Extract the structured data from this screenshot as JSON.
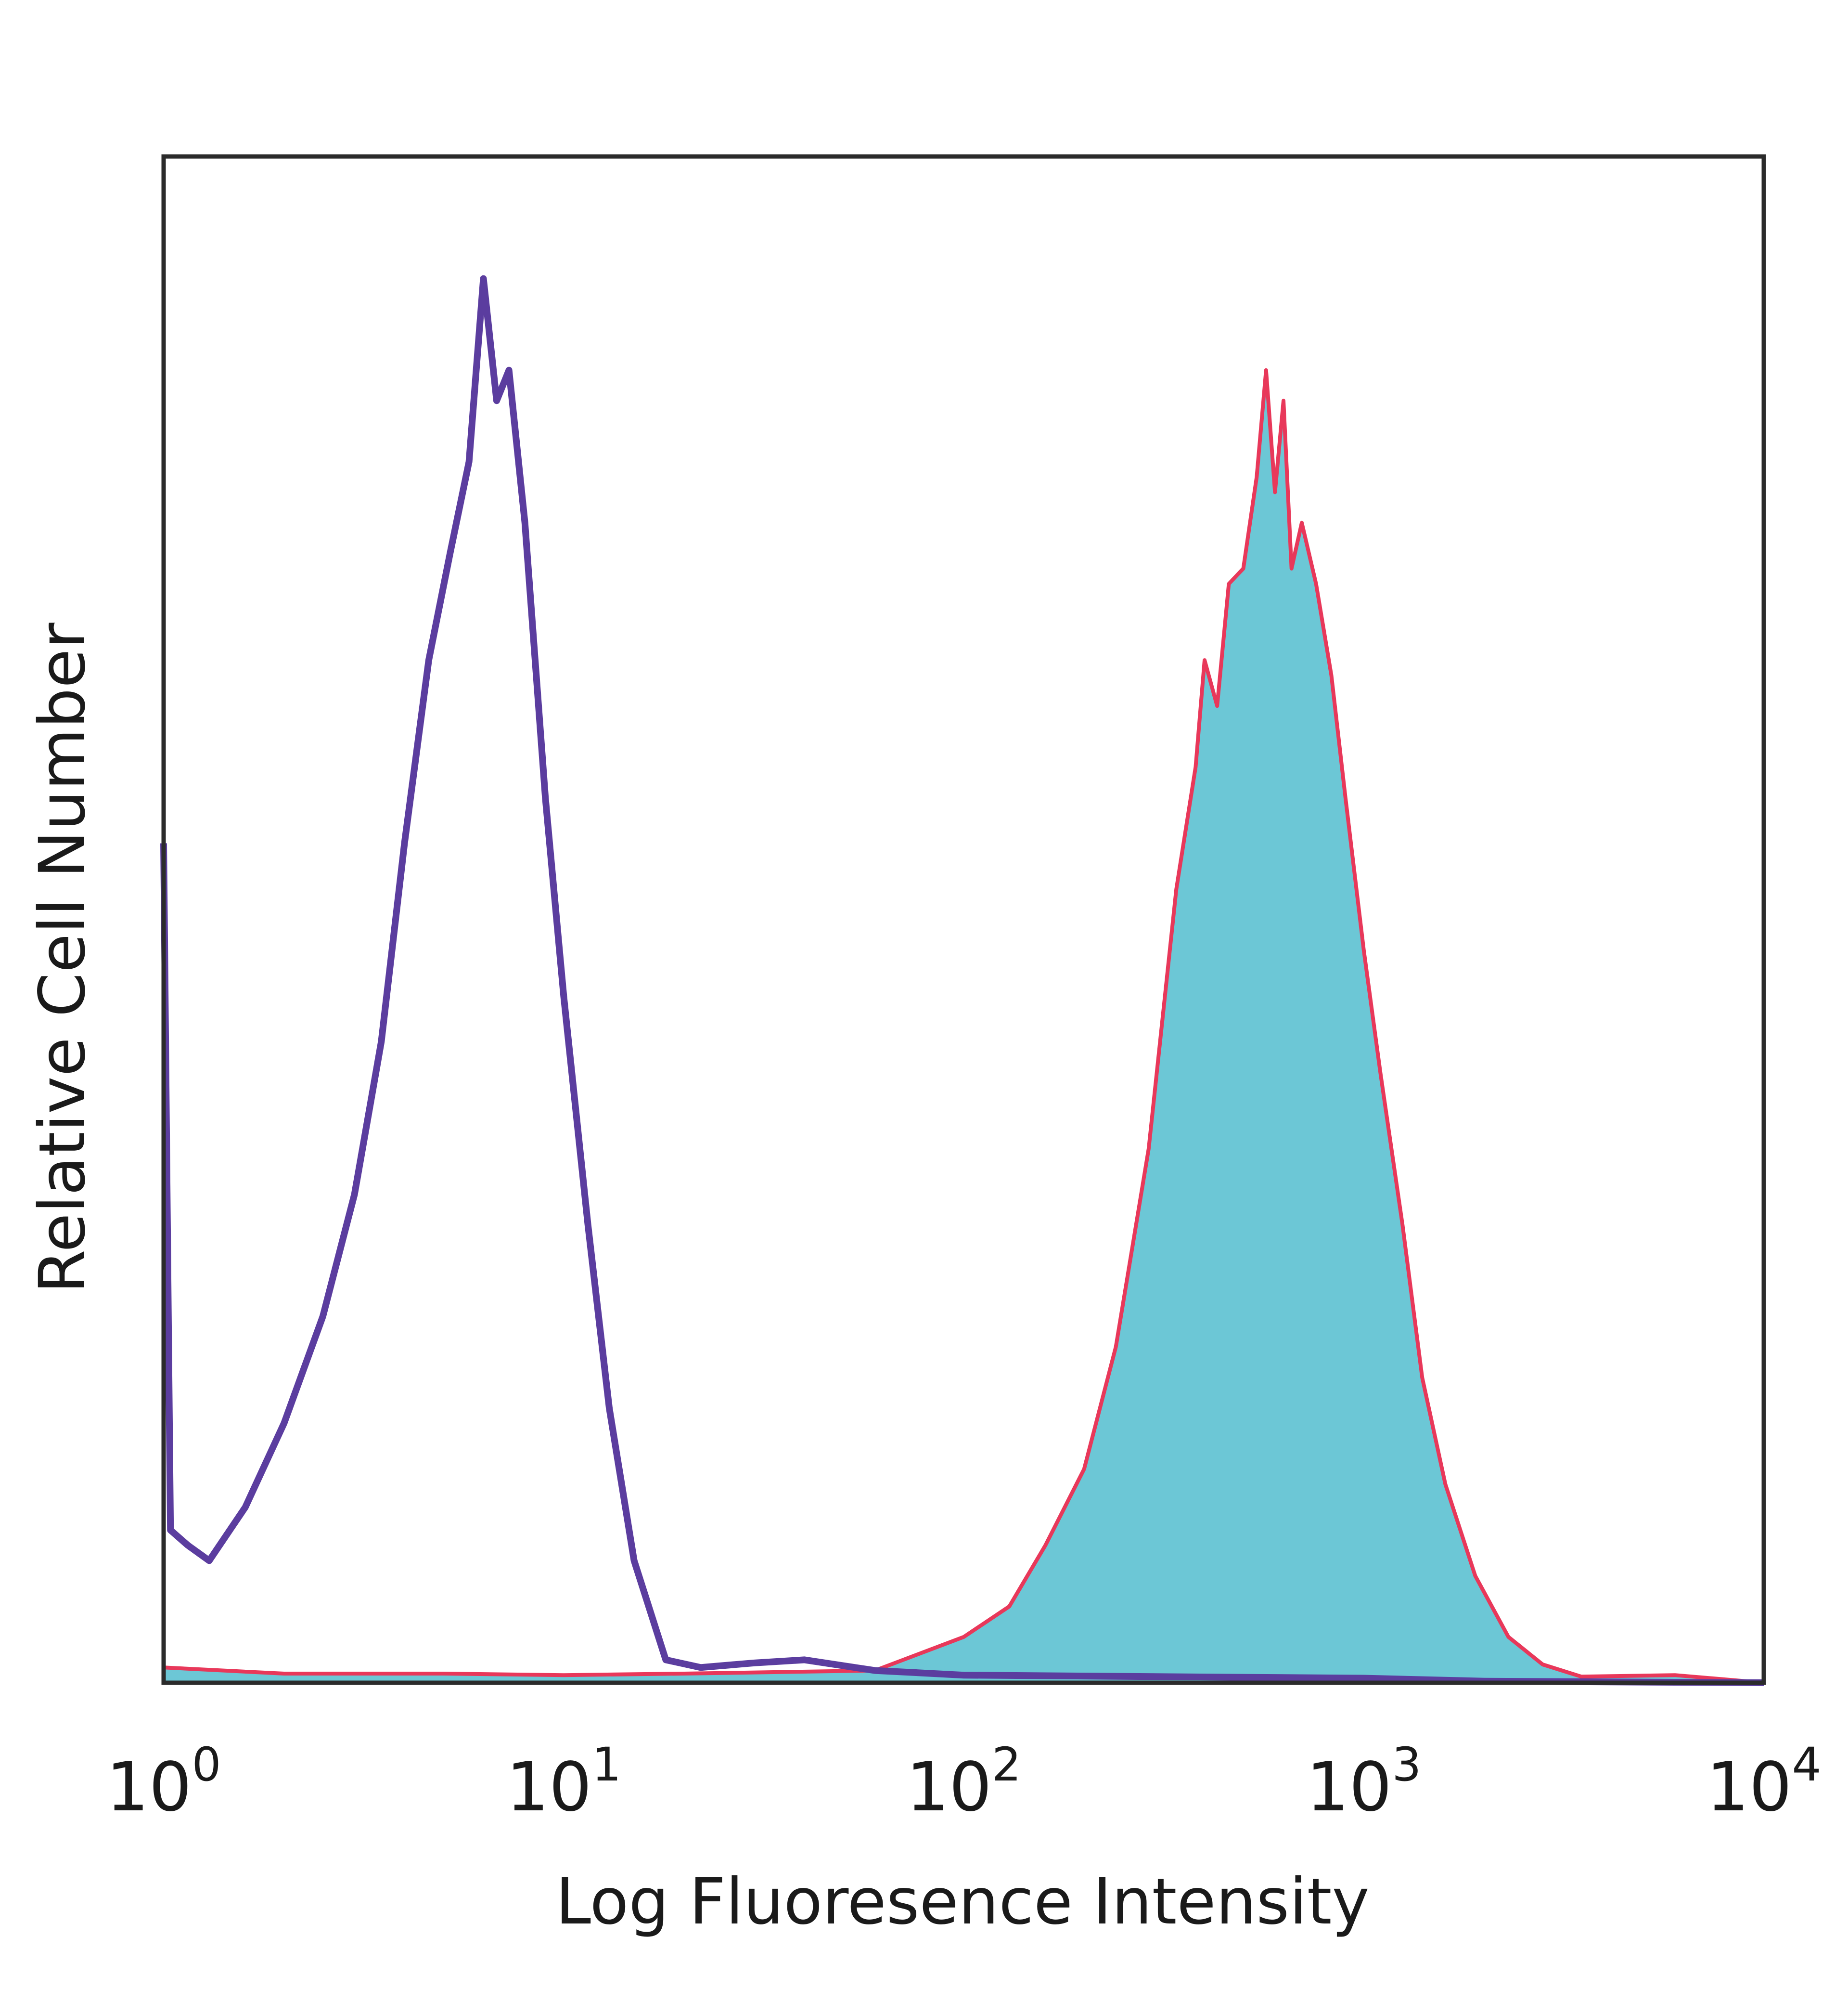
{
  "chart_data": {
    "type": "area",
    "title": "",
    "xlabel": "Log Fluoresence Intensity",
    "ylabel": "Relative Cell Number",
    "x_scale": "log",
    "xlim": [
      1,
      10000
    ],
    "ylim": [
      0,
      100
    ],
    "grid": false,
    "legend": "none",
    "x_ticks": [
      {
        "base": "10",
        "exp": "0",
        "value": 1
      },
      {
        "base": "10",
        "exp": "1",
        "value": 10
      },
      {
        "base": "10",
        "exp": "2",
        "value": 100
      },
      {
        "base": "10",
        "exp": "3",
        "value": 1000
      },
      {
        "base": "10",
        "exp": "4",
        "value": 10000
      }
    ],
    "series": [
      {
        "style": "filled",
        "fill": "#6cc7d6",
        "stroke": "#e8385a",
        "points": [
          [
            1.0,
            1.0
          ],
          [
            2.0,
            0.6
          ],
          [
            5.0,
            0.6
          ],
          [
            10.0,
            0.5
          ],
          [
            20.0,
            0.6
          ],
          [
            60.0,
            0.8
          ],
          [
            100.0,
            3.0
          ],
          [
            130.0,
            5.0
          ],
          [
            160.0,
            9.0
          ],
          [
            200.0,
            14.0
          ],
          [
            240.0,
            22.0
          ],
          [
            290.0,
            35.0
          ],
          [
            340.0,
            52.0
          ],
          [
            380.0,
            60.0
          ],
          [
            400.0,
            67.0
          ],
          [
            430.0,
            64.0
          ],
          [
            460.0,
            72.0
          ],
          [
            500.0,
            73.0
          ],
          [
            540.0,
            79.0
          ],
          [
            570.0,
            86.0
          ],
          [
            600.0,
            78.0
          ],
          [
            630.0,
            84.0
          ],
          [
            660.0,
            73.0
          ],
          [
            700.0,
            76.0
          ],
          [
            760.0,
            72.0
          ],
          [
            830.0,
            66.0
          ],
          [
            900.0,
            58.0
          ],
          [
            1000.0,
            48.0
          ],
          [
            1100.0,
            40.0
          ],
          [
            1250.0,
            30.0
          ],
          [
            1400.0,
            20.0
          ],
          [
            1600.0,
            13.0
          ],
          [
            1900.0,
            7.0
          ],
          [
            2300.0,
            3.0
          ],
          [
            2800.0,
            1.2
          ],
          [
            3500.0,
            0.4
          ],
          [
            6000.0,
            0.5
          ],
          [
            10000.0,
            0.0
          ]
        ]
      },
      {
        "style": "line",
        "stroke": "#5b3d9f",
        "points": [
          [
            1.0,
            55.0
          ],
          [
            1.04,
            10.0
          ],
          [
            1.15,
            9.0
          ],
          [
            1.3,
            8.0
          ],
          [
            1.6,
            11.5
          ],
          [
            2.0,
            17.0
          ],
          [
            2.5,
            24.0
          ],
          [
            3.0,
            32.0
          ],
          [
            3.5,
            42.0
          ],
          [
            4.0,
            55.0
          ],
          [
            4.6,
            67.0
          ],
          [
            5.2,
            74.0
          ],
          [
            5.8,
            80.0
          ],
          [
            6.3,
            92.0
          ],
          [
            6.8,
            84.0
          ],
          [
            7.3,
            86.0
          ],
          [
            8.0,
            76.0
          ],
          [
            9.0,
            58.0
          ],
          [
            10.0,
            45.0
          ],
          [
            11.5,
            30.0
          ],
          [
            13.0,
            18.0
          ],
          [
            15.0,
            8.0
          ],
          [
            18.0,
            1.5
          ],
          [
            22.0,
            1.0
          ],
          [
            30.0,
            1.3
          ],
          [
            40.0,
            1.5
          ],
          [
            60.0,
            0.8
          ],
          [
            100.0,
            0.5
          ],
          [
            300.0,
            0.4
          ],
          [
            1000.0,
            0.3
          ],
          [
            2000.0,
            0.1
          ],
          [
            10000.0,
            0.0
          ]
        ]
      }
    ]
  }
}
